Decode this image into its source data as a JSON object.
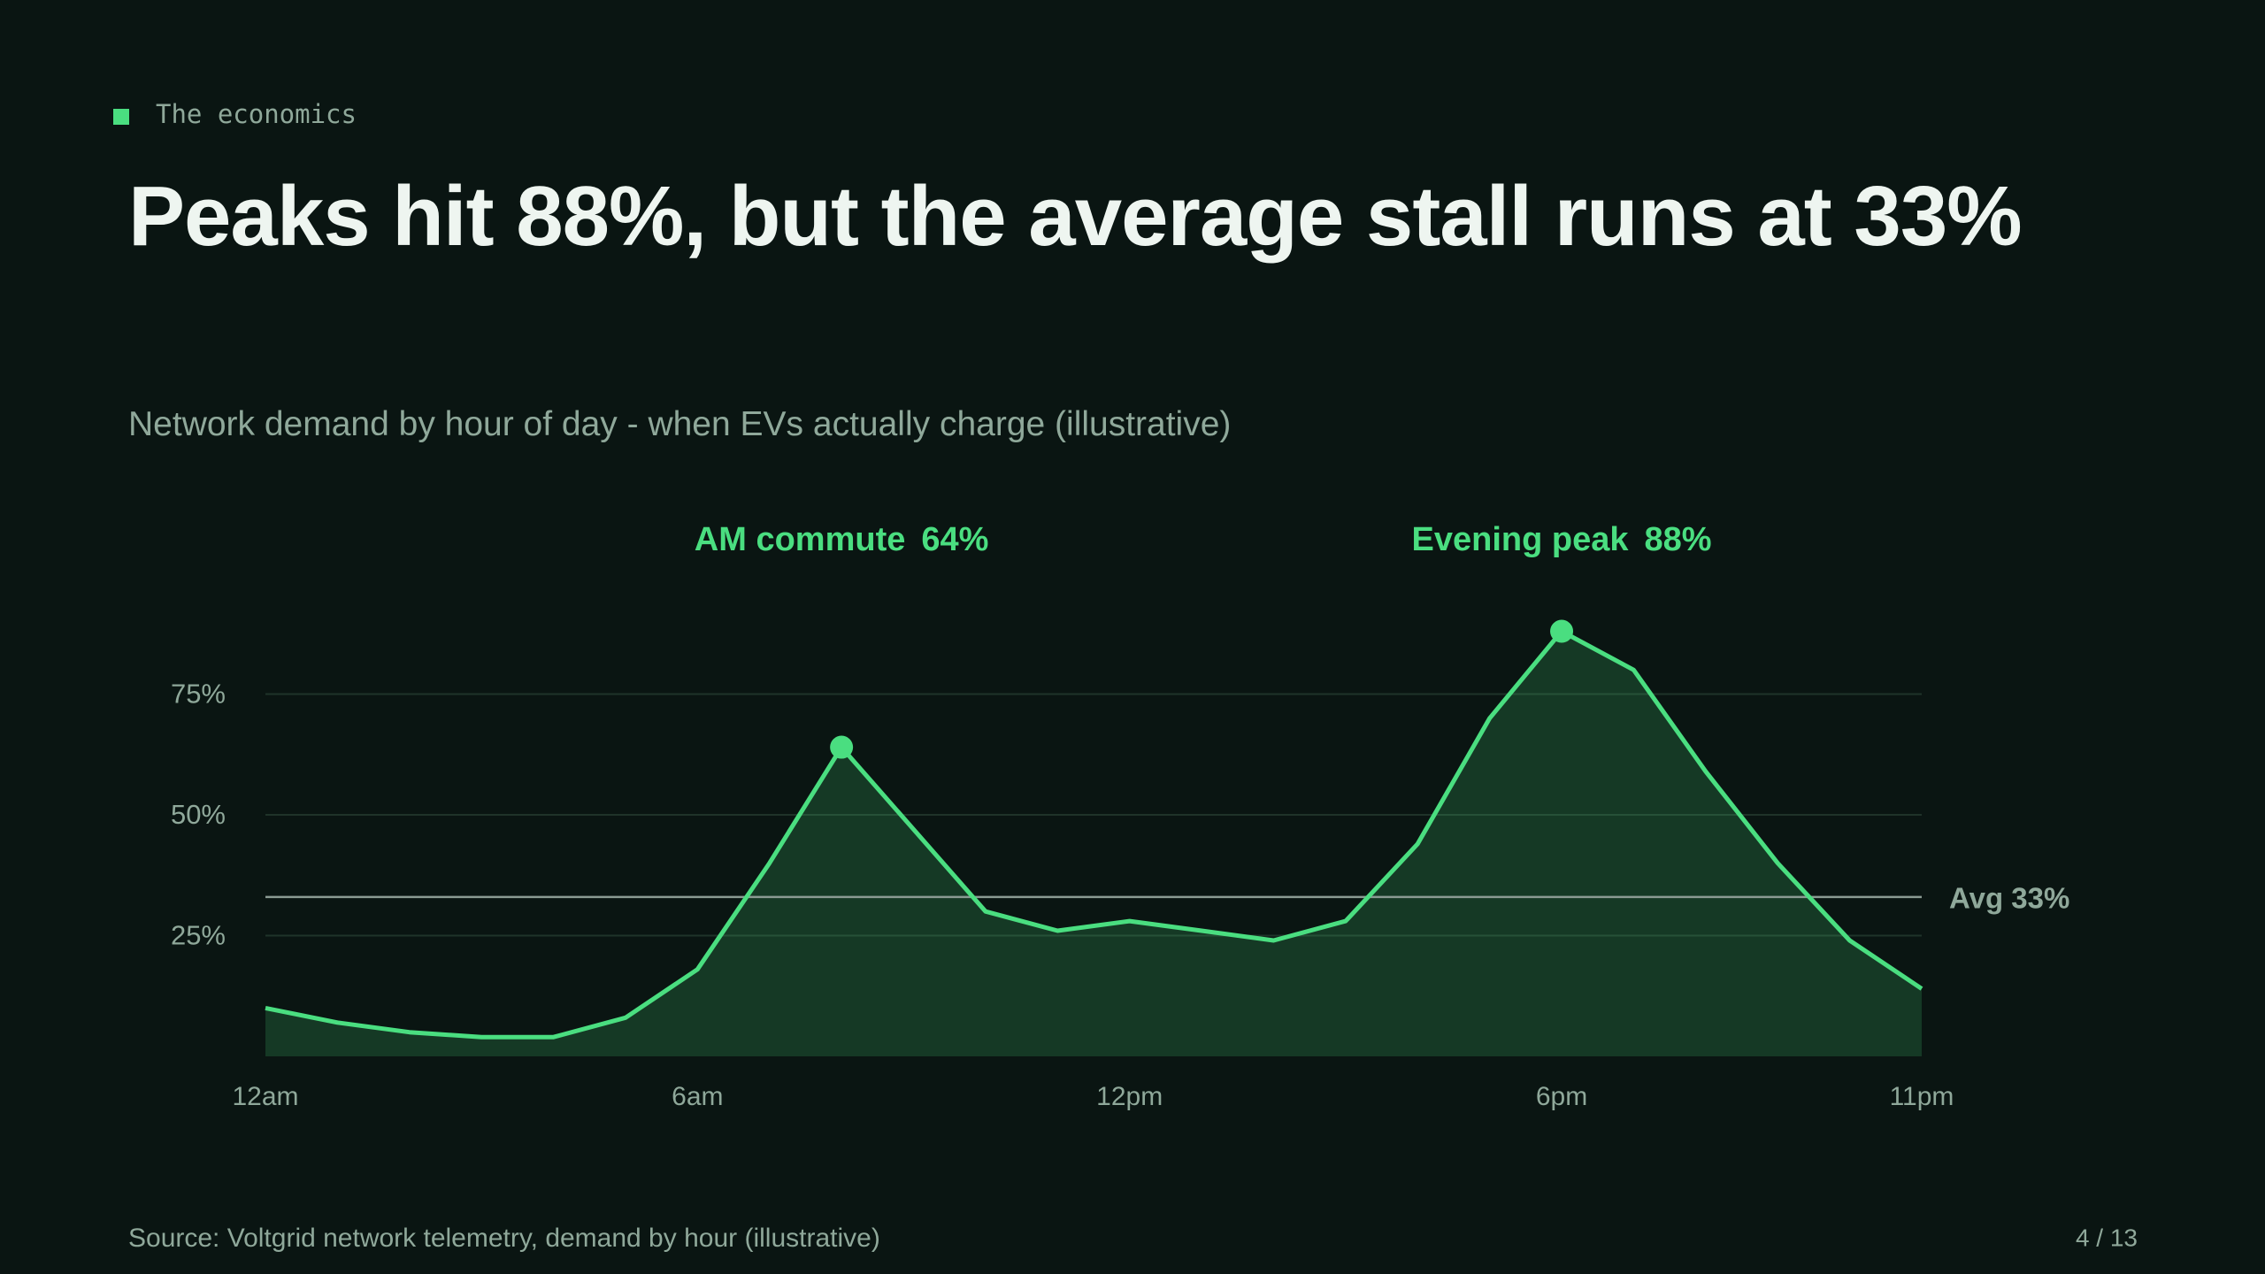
{
  "eyebrow": "The economics",
  "chart_data": {
    "type": "area-line",
    "title": "Peaks hit 88%, but the average stall runs at 33%",
    "subtitle": "Network demand by hour of day - when EVs actually charge (illustrative)",
    "categories": [
      "12am",
      null,
      null,
      null,
      null,
      null,
      "6am",
      null,
      null,
      null,
      null,
      null,
      "12pm",
      null,
      null,
      null,
      null,
      null,
      "6pm",
      null,
      null,
      null,
      null,
      "11pm"
    ],
    "series": [
      {
        "name": "Network demand",
        "color": "#4ade80",
        "values": [
          10,
          7,
          5,
          4,
          4,
          8,
          18,
          40,
          64,
          47,
          30,
          26,
          28,
          26,
          24,
          28,
          44,
          70,
          88,
          80,
          59,
          40,
          24,
          14
        ],
        "value_labels": [
          null,
          null,
          null,
          null,
          null,
          null,
          null,
          null,
          "64%",
          null,
          null,
          null,
          null,
          null,
          null,
          null,
          null,
          null,
          "88%",
          null,
          null,
          null,
          null,
          null
        ],
        "point_notes": [
          null,
          null,
          null,
          null,
          null,
          null,
          null,
          null,
          "AM commute",
          null,
          null,
          null,
          null,
          null,
          null,
          null,
          null,
          null,
          "Evening peak",
          null,
          null,
          null,
          null,
          null
        ]
      }
    ],
    "reference_line": {
      "value": 33,
      "label": "Avg 33%"
    },
    "ylim": [
      0,
      100
    ],
    "yticks": [
      {
        "value": 25,
        "label": "25%"
      },
      {
        "value": 50,
        "label": "50%"
      },
      {
        "value": 75,
        "label": "75%"
      }
    ],
    "grid": true,
    "source": "Source: Voltgrid network telemetry, demand by hour (illustrative)"
  },
  "page_number": "4 / 13"
}
